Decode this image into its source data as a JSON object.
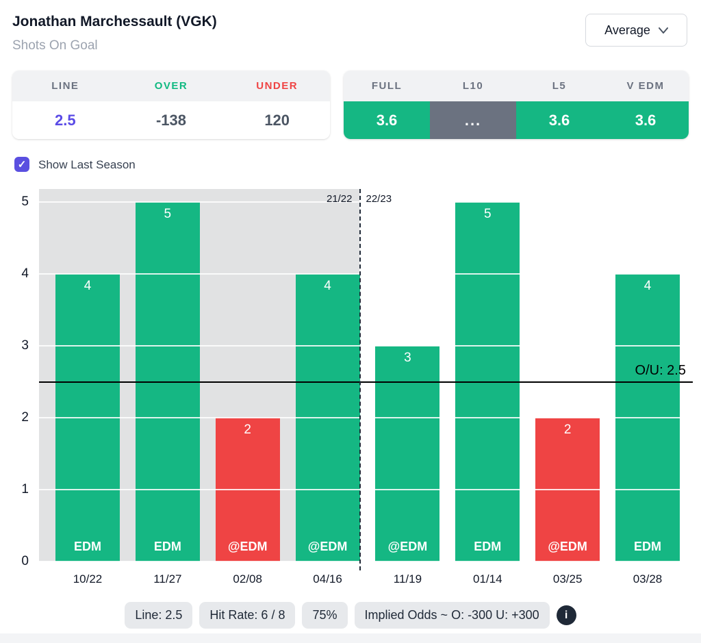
{
  "header": {
    "title": "Jonathan Marchessault (VGK)",
    "subtitle": "Shots On Goal"
  },
  "controls": {
    "stat_selector_value": "Average",
    "show_last_season_label": "Show Last Season",
    "show_last_season_checked": true,
    "check_glyph": "✓"
  },
  "odds_panel": {
    "headers": {
      "line": "LINE",
      "over": "OVER",
      "under": "UNDER"
    },
    "values": {
      "line": "2.5",
      "over": "-138",
      "under": "120"
    }
  },
  "averages_panel": {
    "columns": [
      {
        "label": "FULL",
        "value": "3.6",
        "state": "over"
      },
      {
        "label": "L10",
        "value": "...",
        "state": "na"
      },
      {
        "label": "L5",
        "value": "3.6",
        "state": "over"
      },
      {
        "label": "V EDM",
        "value": "3.6",
        "state": "over"
      }
    ]
  },
  "colors": {
    "over_green": "#15b783",
    "under_red": "#ef4444",
    "line_indigo": "#5a4be6",
    "na_gray": "#6b7280",
    "last_season_bg": "#e1e2e3"
  },
  "chart_data": {
    "type": "bar",
    "x": [
      "10/22",
      "11/27",
      "02/08",
      "04/16",
      "11/19",
      "01/14",
      "03/25",
      "03/28"
    ],
    "values": [
      4,
      5,
      2,
      4,
      3,
      5,
      2,
      4
    ],
    "teams": [
      "EDM",
      "EDM",
      "@EDM",
      "@EDM",
      "@EDM",
      "EDM",
      "@EDM",
      "EDM"
    ],
    "results": [
      "over",
      "over",
      "under",
      "over",
      "over",
      "over",
      "under",
      "over"
    ],
    "yticks": [
      0,
      1,
      2,
      3,
      4,
      5
    ],
    "ylim": [
      0,
      5.2
    ],
    "grid": true,
    "over_under_line": {
      "value": 2.5,
      "label": "O/U: 2.5"
    },
    "seasons": {
      "left_label": "21/22",
      "right_label": "22/23",
      "split_after_index": 3
    }
  },
  "footer": {
    "badges": [
      "Line: 2.5",
      "Hit Rate: 6 / 8",
      "75%",
      "Implied Odds ~ O: -300 U: +300"
    ],
    "info_icon": "i"
  }
}
